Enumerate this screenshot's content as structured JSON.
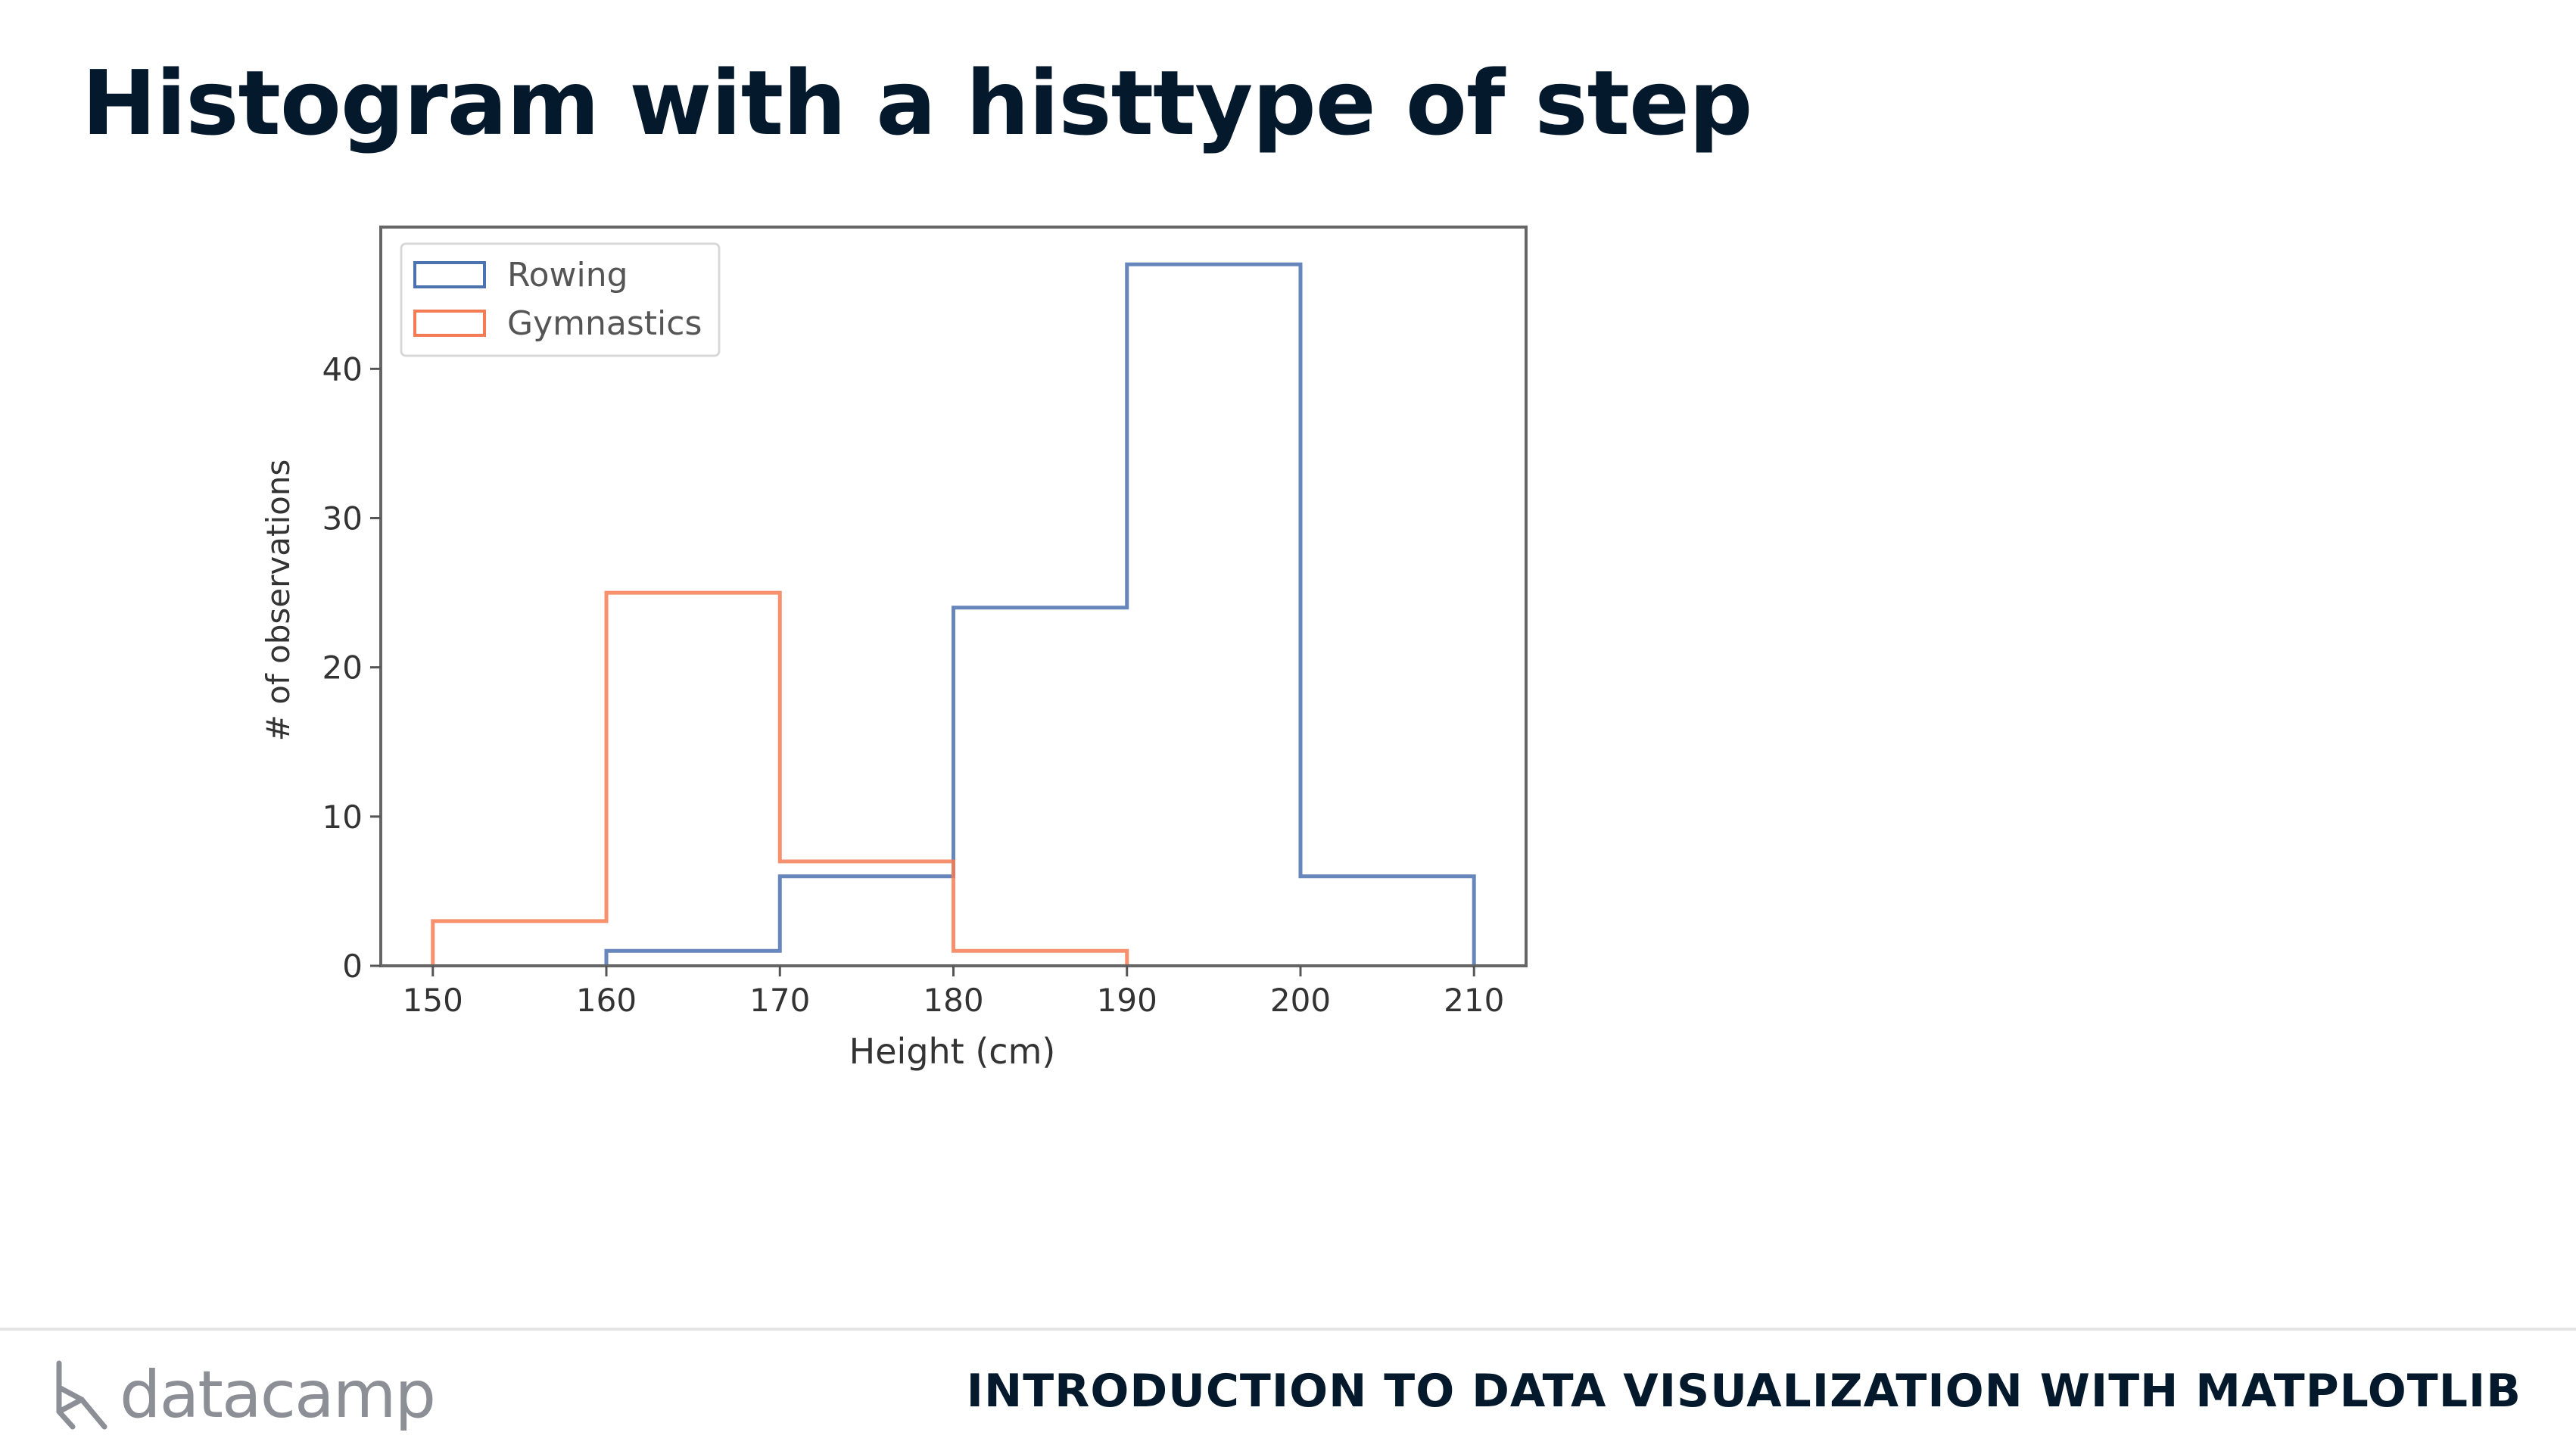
{
  "slide": {
    "title": "Histogram with a histtype of step"
  },
  "footer": {
    "logo_text": "datacamp",
    "course_title": "INTRODUCTION TO DATA VISUALIZATION WITH MATPLOTLIB"
  },
  "colors": {
    "rowing": "#4c72b0",
    "gymnastics": "#f47c54",
    "title": "#05192d",
    "logo": "#8d8f96"
  },
  "chart_data": {
    "type": "histogram",
    "histtype": "step",
    "bins": [
      150,
      160,
      170,
      180,
      190,
      200,
      210
    ],
    "series": [
      {
        "name": "Rowing",
        "values": [
          0,
          1,
          6,
          24,
          47,
          6
        ],
        "color": "#4c72b0"
      },
      {
        "name": "Gymnastics",
        "values": [
          3,
          25,
          7,
          1,
          0,
          0
        ],
        "color": "#f47c54"
      }
    ],
    "xlabel": "Height (cm)",
    "ylabel": "# of observations",
    "xlim": [
      147,
      213
    ],
    "ylim": [
      0,
      49.5
    ],
    "xticks": [
      150,
      160,
      170,
      180,
      190,
      200,
      210
    ],
    "yticks": [
      0,
      10,
      20,
      30,
      40
    ],
    "legend": "upper-left",
    "grid": false
  }
}
